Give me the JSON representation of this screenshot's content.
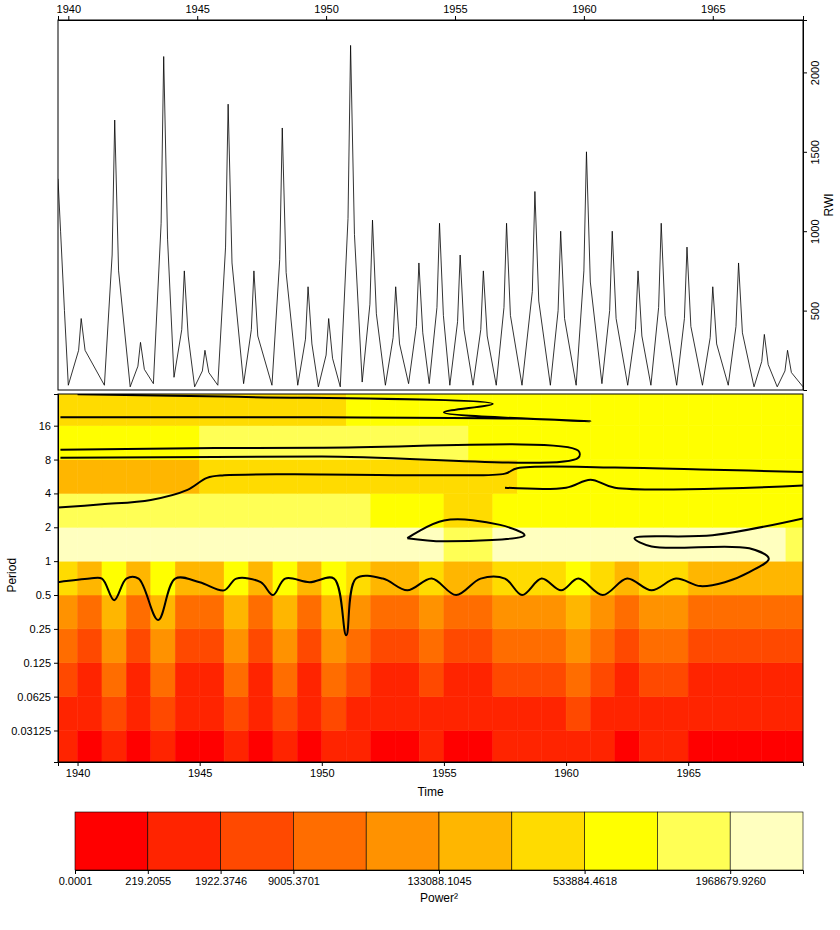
{
  "chart_data": [
    {
      "type": "line",
      "color": "#000000",
      "y_label": "RWI",
      "xlim": [
        1939.6,
        1968.5
      ],
      "xticks": [
        1940,
        1945,
        1950,
        1955,
        1960,
        1965
      ],
      "ylim": [
        0,
        2330
      ],
      "yticks": [
        500,
        1000,
        1500,
        2000
      ],
      "x": [
        1939.6,
        1939.7,
        1939.85,
        1940.0,
        1940.4,
        1940.5,
        1940.65,
        1941.4,
        1941.7,
        1941.8,
        1941.95,
        1942.4,
        1942.7,
        1942.8,
        1942.95,
        1943.3,
        1943.6,
        1943.7,
        1943.85,
        1944.1,
        1944.4,
        1944.5,
        1944.65,
        1944.9,
        1945.2,
        1945.3,
        1945.45,
        1945.8,
        1946.1,
        1946.2,
        1946.35,
        1946.8,
        1947.1,
        1947.2,
        1947.35,
        1947.9,
        1948.2,
        1948.3,
        1948.45,
        1948.9,
        1949.2,
        1949.3,
        1949.45,
        1949.7,
        1950.0,
        1950.1,
        1950.25,
        1950.55,
        1950.85,
        1950.95,
        1951.1,
        1951.4,
        1951.7,
        1951.8,
        1951.95,
        1952.3,
        1952.6,
        1952.7,
        1952.85,
        1953.2,
        1953.5,
        1953.6,
        1953.75,
        1954.0,
        1954.3,
        1954.4,
        1954.55,
        1954.8,
        1955.1,
        1955.2,
        1955.35,
        1955.7,
        1956.0,
        1956.1,
        1956.25,
        1956.6,
        1956.9,
        1957.0,
        1957.15,
        1957.6,
        1958.0,
        1958.1,
        1958.25,
        1958.7,
        1959.0,
        1959.1,
        1959.25,
        1959.7,
        1960.0,
        1960.1,
        1960.25,
        1960.7,
        1961.0,
        1961.1,
        1961.25,
        1961.7,
        1962.0,
        1962.1,
        1962.25,
        1962.6,
        1962.9,
        1963.0,
        1963.15,
        1963.6,
        1963.9,
        1964.0,
        1964.15,
        1964.6,
        1964.9,
        1965.0,
        1965.15,
        1965.6,
        1965.9,
        1966.0,
        1966.15,
        1966.6,
        1966.9,
        1967.0,
        1967.15,
        1967.5,
        1967.8,
        1967.9,
        1968.05,
        1968.5
      ],
      "values": [
        1330,
        1000,
        500,
        30,
        250,
        450,
        250,
        30,
        850,
        1700,
        750,
        20,
        150,
        300,
        130,
        40,
        1050,
        2100,
        950,
        80,
        380,
        750,
        340,
        20,
        120,
        250,
        110,
        30,
        900,
        1800,
        800,
        40,
        380,
        750,
        340,
        30,
        820,
        1650,
        740,
        30,
        320,
        650,
        290,
        20,
        220,
        450,
        200,
        20,
        1080,
        2170,
        980,
        50,
        540,
        1070,
        480,
        30,
        330,
        650,
        290,
        40,
        400,
        800,
        360,
        40,
        520,
        1050,
        470,
        30,
        430,
        850,
        380,
        30,
        380,
        750,
        340,
        30,
        520,
        1050,
        470,
        30,
        620,
        1250,
        560,
        30,
        500,
        1000,
        450,
        30,
        750,
        1500,
        680,
        40,
        500,
        1000,
        450,
        30,
        380,
        750,
        340,
        30,
        520,
        1050,
        470,
        30,
        450,
        900,
        400,
        30,
        330,
        650,
        290,
        30,
        400,
        800,
        360,
        20,
        180,
        350,
        160,
        20,
        120,
        250,
        110,
        20
      ]
    },
    {
      "type": "heatmap",
      "x_label": "Time",
      "y_label": "Period",
      "log": "y",
      "xlim": [
        1939.2,
        1969.7
      ],
      "xticks": [
        1940,
        1945,
        1950,
        1955,
        1960,
        1965
      ],
      "ylim": [
        0.0164,
        30.6
      ],
      "yticks": [
        16,
        8,
        4,
        2,
        1,
        0.5,
        0.25,
        0.125,
        0.0625,
        0.03125
      ],
      "time_edges": [
        1939,
        1940,
        1941,
        1942,
        1943,
        1944,
        1945,
        1946,
        1947,
        1948,
        1949,
        1950,
        1951,
        1952,
        1953,
        1954,
        1955,
        1956,
        1957,
        1958,
        1959,
        1960,
        1961,
        1962,
        1963,
        1964,
        1965,
        1966,
        1967,
        1968,
        1969,
        1970
      ],
      "period_edges": [
        0.015625,
        0.03125,
        0.0625,
        0.125,
        0.25,
        0.5,
        1,
        2,
        4,
        8,
        16,
        32
      ],
      "cells": [
        [
          500,
          100,
          1000,
          100,
          1000,
          100,
          100,
          1000,
          100,
          1000,
          100,
          1000,
          500,
          100,
          100,
          500,
          100,
          100,
          500,
          500,
          500,
          1000,
          500,
          100,
          500,
          500,
          100,
          100,
          100,
          100,
          100
        ],
        [
          1000,
          300,
          5000,
          300,
          5000,
          300,
          300,
          5000,
          300,
          5000,
          300,
          5000,
          1000,
          300,
          300,
          1000,
          300,
          300,
          1000,
          1000,
          1000,
          5000,
          1000,
          300,
          1000,
          1000,
          300,
          300,
          300,
          300,
          300
        ],
        [
          5000,
          1000,
          20000,
          1000,
          20000,
          1000,
          1000,
          20000,
          1000,
          20000,
          1000,
          20000,
          5000,
          1000,
          1000,
          5000,
          1000,
          1000,
          5000,
          5000,
          5000,
          20000,
          5000,
          1000,
          5000,
          5000,
          1000,
          1000,
          1000,
          1000,
          1000
        ],
        [
          20000,
          5000,
          80000,
          5000,
          80000,
          5000,
          5000,
          80000,
          5000,
          80000,
          5000,
          80000,
          20000,
          5000,
          5000,
          20000,
          5000,
          5000,
          20000,
          20000,
          20000,
          80000,
          20000,
          5000,
          20000,
          20000,
          5000,
          5000,
          5000,
          5000,
          5000
        ],
        [
          80000,
          20000,
          200000,
          20000,
          200000,
          20000,
          20000,
          200000,
          20000,
          200000,
          20000,
          200000,
          80000,
          20000,
          20000,
          80000,
          20000,
          20000,
          80000,
          80000,
          80000,
          200000,
          80000,
          20000,
          80000,
          80000,
          20000,
          20000,
          20000,
          20000,
          20000
        ],
        [
          400000,
          200000,
          800000,
          200000,
          800000,
          200000,
          200000,
          800000,
          200000,
          800000,
          200000,
          800000,
          400000,
          200000,
          200000,
          400000,
          200000,
          200000,
          400000,
          400000,
          400000,
          800000,
          400000,
          200000,
          400000,
          400000,
          200000,
          200000,
          200000,
          200000,
          200000
        ],
        [
          3000000,
          3000000,
          3000000,
          3000000,
          3000000,
          3000000,
          3000000,
          3000000,
          3000000,
          3000000,
          3000000,
          3000000,
          3000000,
          3000000,
          3000000,
          3000000,
          1500000,
          1500000,
          3000000,
          3000000,
          3000000,
          3000000,
          3000000,
          3000000,
          3000000,
          3000000,
          3000000,
          3000000,
          3000000,
          3000000,
          1500000
        ],
        [
          1500000,
          1500000,
          1500000,
          1500000,
          1500000,
          1500000,
          1500000,
          1500000,
          1500000,
          1500000,
          1500000,
          1500000,
          1500000,
          800000,
          800000,
          800000,
          400000,
          400000,
          800000,
          800000,
          800000,
          800000,
          800000,
          800000,
          800000,
          800000,
          800000,
          800000,
          800000,
          800000,
          800000
        ],
        [
          200000,
          200000,
          200000,
          200000,
          200000,
          200000,
          400000,
          400000,
          400000,
          400000,
          400000,
          400000,
          400000,
          400000,
          400000,
          400000,
          400000,
          400000,
          400000,
          800000,
          800000,
          800000,
          800000,
          800000,
          800000,
          800000,
          800000,
          800000,
          800000,
          800000,
          800000
        ],
        [
          800000,
          800000,
          800000,
          800000,
          800000,
          800000,
          1500000,
          1500000,
          1500000,
          1500000,
          1500000,
          1500000,
          1500000,
          1500000,
          1500000,
          1500000,
          1500000,
          800000,
          800000,
          800000,
          800000,
          800000,
          800000,
          800000,
          800000,
          800000,
          800000,
          800000,
          800000,
          800000,
          800000
        ],
        [
          400000,
          400000,
          400000,
          400000,
          400000,
          400000,
          400000,
          400000,
          400000,
          400000,
          400000,
          400000,
          800000,
          800000,
          800000,
          800000,
          800000,
          800000,
          800000,
          800000,
          800000,
          800000,
          800000,
          800000,
          800000,
          800000,
          800000,
          800000,
          800000,
          800000,
          800000
        ]
      ],
      "contours": [
        {
          "x": [
            1939.2,
            1940.5,
            1941.0,
            1941.5,
            1942.0,
            1942.5,
            1943.3,
            1944.0,
            1945.0,
            1946.0,
            1946.5,
            1947.5,
            1948.0,
            1948.5,
            1949.5,
            1950.5,
            1951.0,
            1951.4,
            1952.5,
            1953.5,
            1954.5,
            1955.5,
            1956.5,
            1957.5,
            1958.2,
            1959.0,
            1959.8,
            1960.5,
            1961.5,
            1962.5,
            1963.5,
            1964.5,
            1965.5,
            1966.5,
            1967.5,
            1968.3,
            1967.5,
            1963.5,
            1962.8,
            1966.0,
            1969.7
          ],
          "y": [
            0.65,
            0.7,
            0.7,
            0.45,
            0.7,
            0.7,
            0.3,
            0.7,
            0.65,
            0.55,
            0.7,
            0.65,
            0.5,
            0.7,
            0.65,
            0.7,
            0.22,
            0.7,
            0.7,
            0.55,
            0.7,
            0.5,
            0.7,
            0.7,
            0.5,
            0.7,
            0.55,
            0.7,
            0.5,
            0.7,
            0.55,
            0.7,
            0.6,
            0.65,
            0.8,
            1.05,
            1.3,
            1.35,
            1.6,
            1.7,
            2.4
          ]
        },
        {
          "x": [
            1939.2,
            1941,
            1943,
            1944.5,
            1945.3,
            1946,
            1950,
            1955,
            1957.5,
            1958,
            1962,
            1966,
            1969.7
          ],
          "y": [
            3,
            3.2,
            3.5,
            4.3,
            5.5,
            5.8,
            5.9,
            5.8,
            6,
            6.7,
            6.8,
            6.5,
            6.2
          ]
        },
        {
          "x": [
            1957.5,
            1960,
            1961,
            1962,
            1969.7
          ],
          "y": [
            4.5,
            4.5,
            5.3,
            4.5,
            4.7
          ]
        },
        {
          "x": [
            1939.3,
            1950,
            1960.5,
            1960.5,
            1950,
            1939.3
          ],
          "y": [
            8.3,
            8.5,
            8.3,
            9.6,
            10.2,
            9.8
          ]
        },
        {
          "x": [
            1939.3,
            1950,
            1958,
            1961,
            1955,
            1957,
            1946,
            1940
          ],
          "y": [
            19,
            19,
            18.5,
            17.5,
            21,
            25,
            29,
            30.5
          ]
        },
        {
          "x": [
            1953.5,
            1955,
            1957.3,
            1958.3,
            1955,
            1953.5
          ],
          "y": [
            1.6,
            2.3,
            2.1,
            1.7,
            1.5,
            1.6
          ]
        }
      ],
      "colorbar": {
        "label": "Power²",
        "breaks": [
          0.0001,
          219.2055,
          1922.3746,
          9005.3701,
          40000,
          133088.1045,
          280000,
          533884.4618,
          1000000,
          1968679.926,
          4700000
        ],
        "colors": [
          "#ff0000",
          "#ff2400",
          "#ff4900",
          "#ff6d00",
          "#ff9200",
          "#ffb600",
          "#ffdb00",
          "#ffff00",
          "#ffff55",
          "#ffffbf"
        ],
        "ticks": [
          0.0001,
          219.2055,
          1922.3746,
          9005.3701,
          133088.1045,
          533884.4618,
          {
            "value": 1968679.926,
            "label": "1968679.9260"
          }
        ]
      }
    }
  ]
}
